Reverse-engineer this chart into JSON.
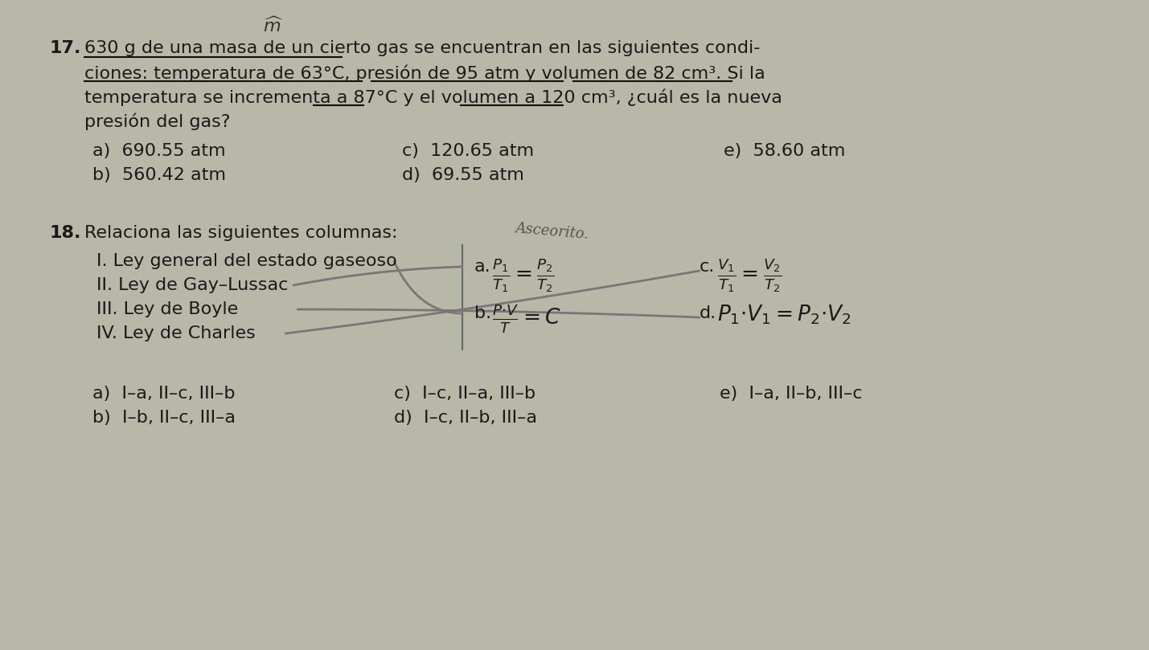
{
  "bg_color": "#b8b8a8",
  "text_color": "#1a1a1a",
  "body_fontsize": 16,
  "q17_number": "17.",
  "q17_line1": "630 g de una masa de un cierto gas se encuentran en las siguientes condi-",
  "q17_line2": "ciones: temperatura de 63°C, presión de 95 atm y volumen de 82 cm³. Si la",
  "q17_line3": "temperatura se incrementa a 87°C y el volumen a 120 cm³, ¿cuál es la nueva",
  "q17_line4": "presión del gas?",
  "q17_a": "a)  690.55 atm",
  "q17_c": "c)  120.65 atm",
  "q17_e": "e)  58.60 atm",
  "q17_b": "b)  560.42 atm",
  "q17_d": "d)  69.55 atm",
  "q18_number": "18.",
  "q18_intro": "Relaciona las siguientes columnas:",
  "q18_note": "Asceorito.",
  "q18_I": "I. Ley general del estado gaseoso",
  "q18_II": "II. Ley de Gay–Lussac",
  "q18_III": "III. Ley de Boyle",
  "q18_IV": "IV. Ley de Charles",
  "q18_a_label": "a.",
  "q18_a_formula": "$\\frac{P_1}{T_1} = \\frac{P_2}{T_2}$",
  "q18_c_label": "c.",
  "q18_c_formula": "$\\frac{V_1}{T_1} = \\frac{V_2}{T_2}$",
  "q18_b_label": "b.",
  "q18_b_formula": "$\\frac{P{\\cdot}V}{T} = C$",
  "q18_d_label": "d.",
  "q18_d_formula": "$P_1{\\cdot}V_1 = P_2{\\cdot}V_2$",
  "q18_ans_a": "a)  I–a, II–c, III–b",
  "q18_ans_c": "c)  I–c, II–a, III–b",
  "q18_ans_e": "e)  I–a, II–b, III–c",
  "q18_ans_b": "b)  I–b, II–c, III–a",
  "q18_ans_d": "d)  I–c, II–b, III–a"
}
